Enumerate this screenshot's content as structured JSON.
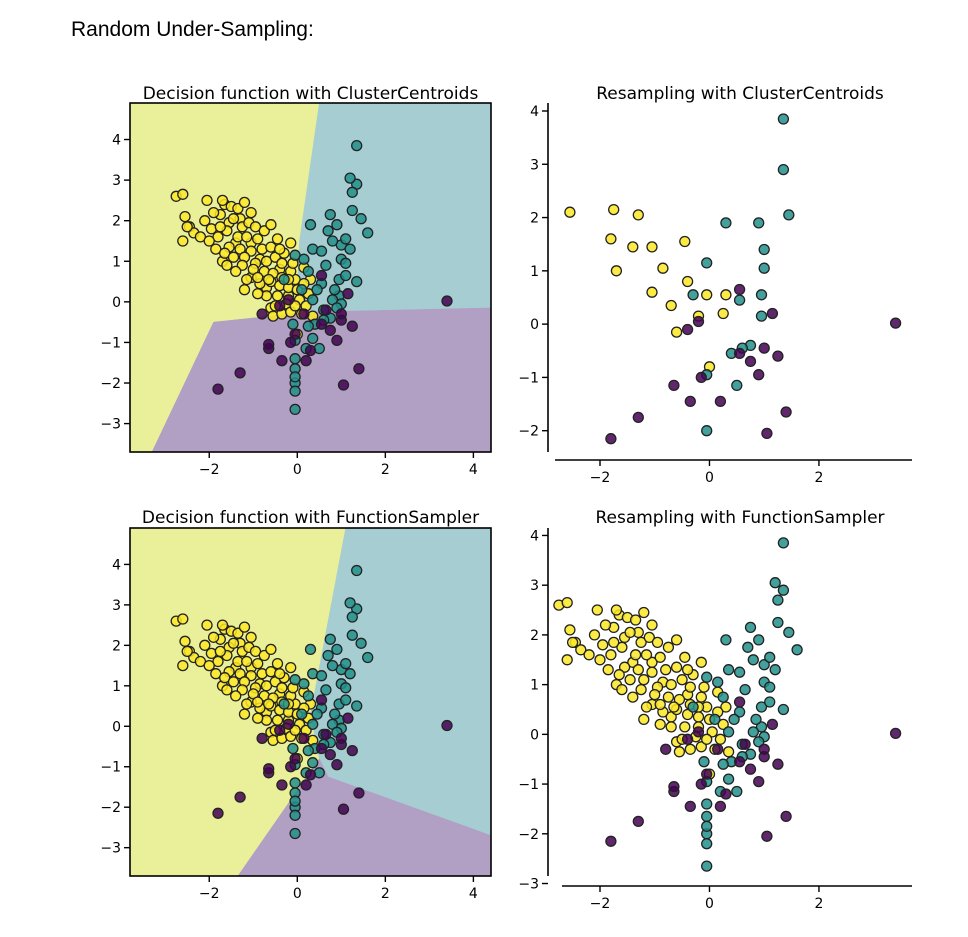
{
  "page": {
    "heading": "Random Under-Sampling:"
  },
  "colors": {
    "yellow": "#fde725",
    "teal": "#21918c",
    "purple": "#440154",
    "region_yellow": "#eaf099",
    "region_teal": "#a6cdd1",
    "region_purple": "#b19fc4",
    "edge": "#222222"
  },
  "chart_data": [
    {
      "id": "decision_cc",
      "type": "scatter",
      "title": "Decision function with ClusterCentroids",
      "xlim": [
        -3.8,
        4.4
      ],
      "ylim": [
        -3.7,
        4.9
      ],
      "xticks": [
        -2,
        0,
        2,
        4
      ],
      "yticks": [
        -3,
        -2,
        -1,
        0,
        1,
        2,
        3,
        4
      ],
      "grid": false,
      "regions": [
        {
          "class": 2,
          "polygon": [
            [
              -3.8,
              -3.7
            ],
            [
              -3.8,
              4.9
            ],
            [
              0.5,
              4.9
            ],
            [
              0.05,
              1.5
            ],
            [
              0.0,
              0.3
            ],
            [
              0.3,
              -0.25
            ],
            [
              -1.9,
              -0.5
            ],
            [
              -3.3,
              -3.7
            ]
          ]
        },
        {
          "class": 1,
          "polygon": [
            [
              0.5,
              4.9
            ],
            [
              4.4,
              4.9
            ],
            [
              4.4,
              -0.15
            ],
            [
              0.3,
              -0.25
            ],
            [
              0.0,
              0.3
            ],
            [
              0.05,
              1.5
            ]
          ]
        },
        {
          "class": 0,
          "polygon": [
            [
              -3.3,
              -3.7
            ],
            [
              -1.9,
              -0.5
            ],
            [
              0.3,
              -0.25
            ],
            [
              4.4,
              -0.15
            ],
            [
              4.4,
              -3.7
            ]
          ]
        }
      ],
      "points": "full"
    },
    {
      "id": "resample_cc",
      "type": "scatter",
      "title": "Resampling with ClusterCentroids",
      "xlim": [
        -2.95,
        3.7
      ],
      "ylim": [
        -2.55,
        4.15
      ],
      "xticks": [
        -2,
        0,
        2
      ],
      "yticks": [
        -2,
        -1,
        0,
        1,
        2,
        3,
        4
      ],
      "grid": false,
      "points": "cc"
    },
    {
      "id": "decision_fs",
      "type": "scatter",
      "title": "Decision function with FunctionSampler",
      "xlim": [
        -3.8,
        4.4
      ],
      "ylim": [
        -3.7,
        4.9
      ],
      "xticks": [
        -2,
        0,
        2,
        4
      ],
      "yticks": [
        -3,
        -2,
        -1,
        0,
        1,
        2,
        3,
        4
      ],
      "grid": false,
      "regions": [
        {
          "class": 2,
          "polygon": [
            [
              -3.8,
              -3.7
            ],
            [
              -3.8,
              4.9
            ],
            [
              1.1,
              4.9
            ],
            [
              0.3,
              0.3
            ],
            [
              0.5,
              -0.8
            ],
            [
              -1.35,
              -3.7
            ]
          ]
        },
        {
          "class": 1,
          "polygon": [
            [
              1.1,
              4.9
            ],
            [
              4.4,
              4.9
            ],
            [
              4.4,
              -2.7
            ],
            [
              0.7,
              -1.25
            ],
            [
              0.5,
              -0.8
            ],
            [
              0.3,
              0.3
            ]
          ]
        },
        {
          "class": 0,
          "polygon": [
            [
              -1.35,
              -3.7
            ],
            [
              0.5,
              -0.8
            ],
            [
              0.7,
              -1.25
            ],
            [
              4.4,
              -2.7
            ],
            [
              4.4,
              -3.7
            ]
          ]
        }
      ],
      "points": "full"
    },
    {
      "id": "resample_fs",
      "type": "scatter",
      "title": "Resampling with FunctionSampler",
      "xlim": [
        -2.95,
        3.7
      ],
      "ylim": [
        -3.05,
        4.15
      ],
      "xticks": [
        -2,
        0,
        2
      ],
      "yticks": [
        -3,
        -2,
        -1,
        0,
        1,
        2,
        3,
        4
      ],
      "grid": false,
      "points": "full"
    }
  ],
  "point_sets": {
    "class0": [
      [
        3.4,
        0.02
      ],
      [
        1.4,
        -1.65
      ],
      [
        1.05,
        -2.05
      ],
      [
        -1.8,
        -2.15
      ],
      [
        -1.3,
        -1.75
      ],
      [
        -0.65,
        -1.15
      ],
      [
        -0.35,
        -1.45
      ],
      [
        0.2,
        -1.45
      ],
      [
        -0.15,
        -1.0
      ],
      [
        0.9,
        -0.95
      ],
      [
        0.75,
        -0.7
      ],
      [
        -0.65,
        -1.05
      ],
      [
        1.25,
        -0.6
      ],
      [
        1.0,
        -0.45
      ],
      [
        0.55,
        -0.55
      ],
      [
        1.15,
        0.2
      ],
      [
        0.55,
        0.65
      ],
      [
        -0.2,
        0.05
      ],
      [
        -0.4,
        -0.1
      ],
      [
        0.15,
        -0.3
      ],
      [
        -0.8,
        -0.3
      ],
      [
        1.0,
        -0.3
      ],
      [
        0.65,
        -0.2
      ],
      [
        -0.05,
        -0.8
      ],
      [
        0.3,
        -1.2
      ]
    ],
    "class1": [
      [
        1.35,
        3.85
      ],
      [
        1.35,
        2.9
      ],
      [
        1.45,
        2.05
      ],
      [
        0.9,
        1.9
      ],
      [
        0.3,
        1.9
      ],
      [
        1.0,
        1.4
      ],
      [
        -0.05,
        1.15
      ],
      [
        1.0,
        1.05
      ],
      [
        0.95,
        0.55
      ],
      [
        0.55,
        0.45
      ],
      [
        -0.3,
        0.55
      ],
      [
        0.95,
        0.15
      ],
      [
        0.75,
        -0.4
      ],
      [
        0.6,
        -0.45
      ],
      [
        0.4,
        -0.55
      ],
      [
        0.5,
        -1.15
      ],
      [
        -0.05,
        -0.95
      ],
      [
        -0.05,
        -2.0
      ],
      [
        -0.05,
        -1.4
      ],
      [
        -0.05,
        -1.65
      ],
      [
        -0.05,
        -1.85
      ],
      [
        -0.05,
        -2.2
      ],
      [
        -0.05,
        -2.65
      ],
      [
        1.2,
        3.05
      ],
      [
        1.25,
        2.7
      ],
      [
        0.75,
        2.15
      ],
      [
        1.1,
        1.55
      ],
      [
        1.2,
        1.3
      ],
      [
        1.6,
        1.7
      ],
      [
        0.8,
        1.5
      ],
      [
        0.35,
        1.3
      ],
      [
        0.55,
        1.25
      ],
      [
        1.1,
        0.95
      ],
      [
        1.35,
        0.5
      ],
      [
        0.25,
        0.75
      ],
      [
        0.45,
        0.3
      ],
      [
        0.85,
        0.3
      ],
      [
        0.35,
        0.05
      ],
      [
        0.8,
        0.05
      ],
      [
        1.0,
        -0.05
      ],
      [
        0.1,
        0.3
      ],
      [
        0.6,
        -0.2
      ],
      [
        0.25,
        -0.6
      ],
      [
        0.35,
        -0.9
      ],
      [
        0.2,
        -1.15
      ],
      [
        -0.1,
        -0.55
      ],
      [
        0.9,
        -0.15
      ],
      [
        1.1,
        0.65
      ],
      [
        0.15,
        1.05
      ],
      [
        0.65,
        0.9
      ],
      [
        1.25,
        2.25
      ],
      [
        0.7,
        1.75
      ]
    ],
    "class2": [
      [
        -2.55,
        2.1
      ],
      [
        -2.75,
        2.6
      ],
      [
        -1.75,
        2.15
      ],
      [
        -1.8,
        1.6
      ],
      [
        -1.3,
        2.05
      ],
      [
        -1.7,
        1.0
      ],
      [
        -1.4,
        1.45
      ],
      [
        -1.05,
        1.45
      ],
      [
        -0.85,
        1.05
      ],
      [
        -0.45,
        1.55
      ],
      [
        -1.05,
        0.6
      ],
      [
        -0.7,
        0.35
      ],
      [
        -0.4,
        0.8
      ],
      [
        -0.05,
        0.55
      ],
      [
        0.3,
        0.55
      ],
      [
        -0.2,
        0.15
      ],
      [
        0.25,
        0.2
      ],
      [
        -0.6,
        -0.15
      ],
      [
        0.35,
        -0.35
      ],
      [
        0.0,
        -0.8
      ],
      [
        -2.6,
        2.65
      ],
      [
        -2.45,
        1.85
      ],
      [
        -2.35,
        1.7
      ],
      [
        -2.5,
        1.85
      ],
      [
        -1.65,
        2.4
      ],
      [
        -1.5,
        2.35
      ],
      [
        -1.35,
        2.3
      ],
      [
        -1.2,
        2.45
      ],
      [
        -1.55,
        1.95
      ],
      [
        -1.45,
        2.05
      ],
      [
        -1.25,
        1.85
      ],
      [
        -1.1,
        1.95
      ],
      [
        -0.95,
        1.85
      ],
      [
        -1.6,
        1.75
      ],
      [
        -1.35,
        1.6
      ],
      [
        -1.15,
        1.6
      ],
      [
        -0.9,
        1.55
      ],
      [
        -0.75,
        1.75
      ],
      [
        -1.55,
        1.35
      ],
      [
        -1.3,
        1.3
      ],
      [
        -1.05,
        1.25
      ],
      [
        -0.8,
        1.3
      ],
      [
        -0.6,
        1.35
      ],
      [
        -1.2,
        1.1
      ],
      [
        -0.95,
        0.95
      ],
      [
        -0.7,
        1.0
      ],
      [
        -0.5,
        1.1
      ],
      [
        -0.3,
        1.2
      ],
      [
        -1.0,
        0.8
      ],
      [
        -0.75,
        0.75
      ],
      [
        -0.55,
        0.7
      ],
      [
        -0.35,
        0.6
      ],
      [
        -0.15,
        0.75
      ],
      [
        -0.85,
        0.45
      ],
      [
        -0.6,
        0.5
      ],
      [
        -0.4,
        0.4
      ],
      [
        -0.2,
        0.35
      ],
      [
        0.0,
        0.3
      ],
      [
        -0.45,
        0.15
      ],
      [
        -0.25,
        -0.05
      ],
      [
        0.05,
        0.05
      ],
      [
        -0.55,
        -0.35
      ],
      [
        -0.35,
        -0.3
      ],
      [
        -0.15,
        -0.25
      ],
      [
        0.1,
        -0.3
      ],
      [
        -1.9,
        2.2
      ],
      [
        -2.2,
        1.6
      ],
      [
        -2.0,
        1.5
      ],
      [
        -2.1,
        2.0
      ],
      [
        -1.85,
        1.3
      ],
      [
        -1.65,
        1.2
      ],
      [
        -1.45,
        1.1
      ],
      [
        -1.25,
        0.9
      ],
      [
        -1.6,
        0.9
      ],
      [
        -1.4,
        0.75
      ],
      [
        -1.15,
        0.55
      ],
      [
        -0.9,
        0.6
      ],
      [
        -0.65,
        0.55
      ],
      [
        -0.7,
        0.15
      ],
      [
        -0.9,
        0.2
      ],
      [
        -1.2,
        0.3
      ],
      [
        -0.5,
        -0.1
      ],
      [
        -0.05,
        -0.1
      ],
      [
        0.2,
        -0.1
      ],
      [
        -2.05,
        2.5
      ],
      [
        -1.7,
        2.5
      ],
      [
        -0.35,
        0.95
      ],
      [
        -0.1,
        0.95
      ],
      [
        -0.2,
        0.55
      ],
      [
        0.15,
        0.45
      ],
      [
        -2.6,
        1.5
      ],
      [
        -1.95,
        1.8
      ],
      [
        -1.75,
        1.85
      ],
      [
        -1.05,
        2.2
      ],
      [
        -0.6,
        1.9
      ],
      [
        -0.4,
        1.3
      ],
      [
        -0.15,
        1.45
      ],
      [
        0.15,
        0.85
      ]
    ],
    "cc": {
      "class0": [
        [
          3.4,
          0.02
        ],
        [
          1.4,
          -1.65
        ],
        [
          1.05,
          -2.05
        ],
        [
          -1.8,
          -2.15
        ],
        [
          -1.3,
          -1.75
        ],
        [
          -0.65,
          -1.15
        ],
        [
          -0.35,
          -1.45
        ],
        [
          0.2,
          -1.45
        ],
        [
          -0.15,
          -1.0
        ],
        [
          0.9,
          -0.95
        ],
        [
          0.75,
          -0.7
        ],
        [
          1.25,
          -0.6
        ],
        [
          1.0,
          -0.45
        ],
        [
          0.55,
          -0.55
        ],
        [
          1.15,
          0.2
        ],
        [
          0.55,
          0.65
        ],
        [
          -0.2,
          0.05
        ],
        [
          -0.4,
          -0.1
        ]
      ],
      "class1": [
        [
          1.35,
          3.85
        ],
        [
          1.35,
          2.9
        ],
        [
          1.45,
          2.05
        ],
        [
          0.9,
          1.9
        ],
        [
          0.3,
          1.9
        ],
        [
          1.0,
          1.4
        ],
        [
          -0.05,
          1.15
        ],
        [
          1.0,
          1.05
        ],
        [
          0.95,
          0.55
        ],
        [
          0.55,
          0.45
        ],
        [
          -0.3,
          0.55
        ],
        [
          0.95,
          0.15
        ],
        [
          0.75,
          -0.4
        ],
        [
          0.6,
          -0.45
        ],
        [
          0.4,
          -0.55
        ],
        [
          0.5,
          -1.15
        ],
        [
          -0.05,
          -0.95
        ],
        [
          -0.05,
          -2.0
        ]
      ],
      "class2": [
        [
          -2.55,
          2.1
        ],
        [
          -1.75,
          2.15
        ],
        [
          -1.3,
          2.05
        ],
        [
          -1.8,
          1.6
        ],
        [
          -1.4,
          1.45
        ],
        [
          -1.05,
          1.45
        ],
        [
          -0.45,
          1.55
        ],
        [
          -1.7,
          1.0
        ],
        [
          -0.85,
          1.05
        ],
        [
          -0.4,
          0.8
        ],
        [
          -1.05,
          0.6
        ],
        [
          -0.7,
          0.35
        ],
        [
          -0.05,
          0.55
        ],
        [
          0.3,
          0.55
        ],
        [
          -0.2,
          0.15
        ],
        [
          0.25,
          0.2
        ],
        [
          -0.6,
          -0.15
        ],
        [
          0.0,
          -0.8
        ]
      ]
    }
  }
}
